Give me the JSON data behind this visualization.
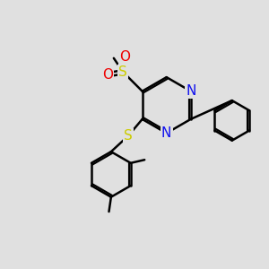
{
  "bg_color": "#e0e0e0",
  "bond_color": "#000000",
  "bond_width": 1.8,
  "atom_colors": {
    "N": "#1010ee",
    "S": "#cccc00",
    "O": "#ee0000",
    "C": "#000000"
  },
  "font_size": 11
}
